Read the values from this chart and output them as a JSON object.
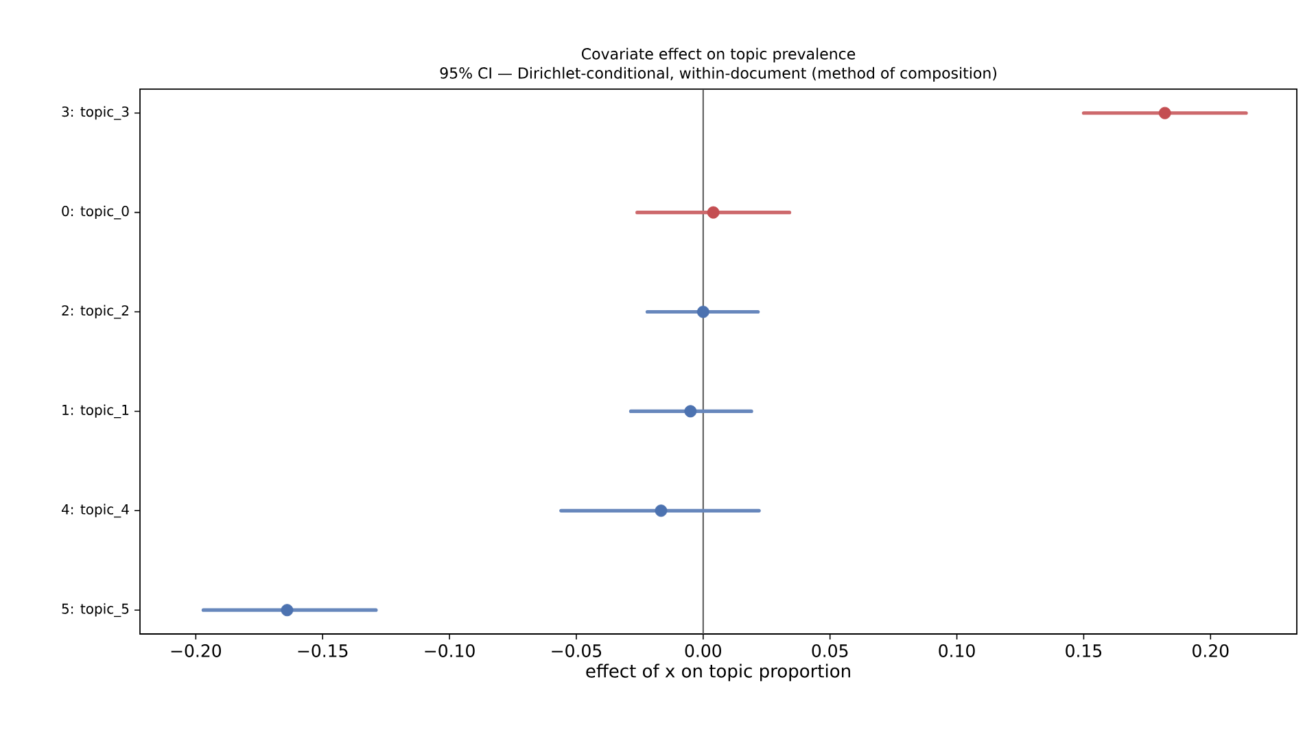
{
  "chart_data": {
    "type": "scatter",
    "orientation": "horizontal",
    "title": "Covariate effect on topic prevalence",
    "subtitle": "95% CI — Dirichlet-conditional, within-document (method of composition)",
    "xlabel": "effect of x on topic proportion",
    "categories": [
      "3: topic_3",
      "0: topic_0",
      "2: topic_2",
      "1: topic_1",
      "4: topic_4",
      "5: topic_5"
    ],
    "values": [
      0.182,
      0.004,
      0.0,
      -0.005,
      -0.0166,
      -0.164
    ],
    "errors": [
      [
        0.15,
        0.214
      ],
      [
        -0.026,
        0.034
      ],
      [
        -0.022,
        0.0216
      ],
      [
        -0.0285,
        0.019
      ],
      [
        -0.056,
        0.022
      ],
      [
        -0.197,
        -0.129
      ]
    ],
    "colors": [
      "#c44e52",
      "#c44e52",
      "#4c72b0",
      "#4c72b0",
      "#4c72b0",
      "#4c72b0"
    ],
    "marker": "circle",
    "grid": false,
    "xlim": [
      -0.222,
      0.234
    ],
    "xticks": [
      {
        "value": -0.2,
        "label": "−0.20"
      },
      {
        "value": -0.15,
        "label": "−0.15"
      },
      {
        "value": -0.1,
        "label": "−0.10"
      },
      {
        "value": -0.05,
        "label": "−0.05"
      },
      {
        "value": 0.0,
        "label": "0.00"
      },
      {
        "value": 0.05,
        "label": "0.05"
      },
      {
        "value": 0.1,
        "label": "0.10"
      },
      {
        "value": 0.15,
        "label": "0.15"
      },
      {
        "value": 0.2,
        "label": "0.20"
      }
    ],
    "ref_lines": [
      {
        "axis": "x",
        "value": 0,
        "color": "#555555"
      }
    ]
  }
}
